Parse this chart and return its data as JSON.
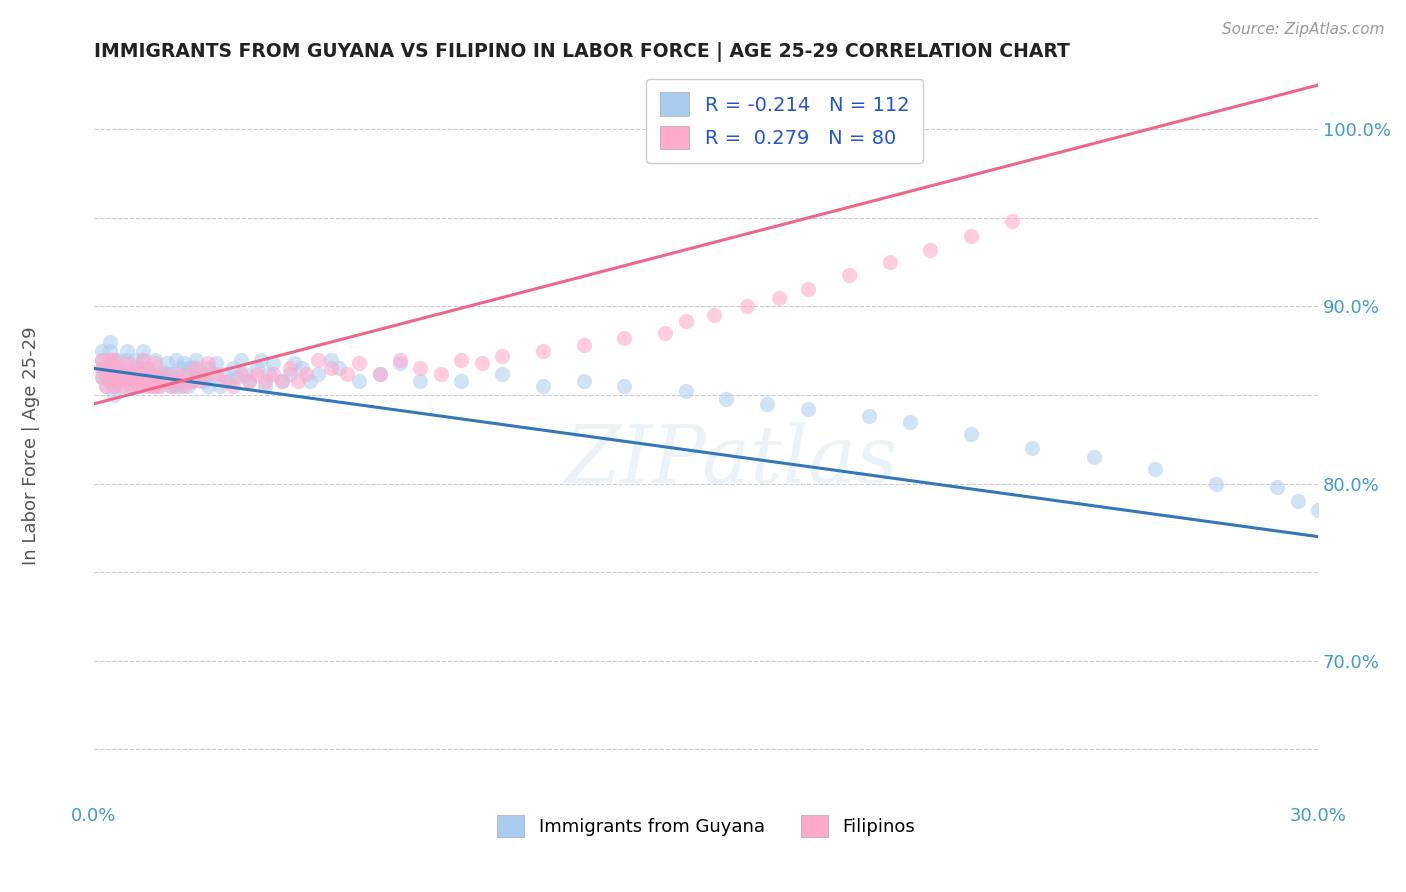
{
  "title": "IMMIGRANTS FROM GUYANA VS FILIPINO IN LABOR FORCE | AGE 25-29 CORRELATION CHART",
  "source": "Source: ZipAtlas.com",
  "ylabel": "In Labor Force | Age 25-29",
  "xlim": [
    0.0,
    0.3
  ],
  "ylim": [
    0.62,
    1.03
  ],
  "legend_label1": "Immigrants from Guyana",
  "legend_label2": "Filipinos",
  "r1": -0.214,
  "n1": 112,
  "r2": 0.279,
  "n2": 80,
  "color_blue": "#aaccee",
  "color_pink": "#ffaacc",
  "color_blue_line": "#3377bb",
  "color_pink_line": "#ee6688",
  "background": "#ffffff",
  "grid_color": "#bbbbcc",
  "title_color": "#222222",
  "axis_label_color": "#4499cc",
  "watermark": "ZIPatlas",
  "blue_line_x0": 0.0,
  "blue_line_y0": 0.865,
  "blue_line_x1": 0.3,
  "blue_line_y1": 0.77,
  "pink_line_x0": 0.0,
  "pink_line_y0": 0.845,
  "pink_line_x1": 0.3,
  "pink_line_y1": 1.025,
  "blue_x": [
    0.002,
    0.002,
    0.002,
    0.002,
    0.003,
    0.003,
    0.003,
    0.004,
    0.004,
    0.004,
    0.005,
    0.005,
    0.005,
    0.005,
    0.005,
    0.006,
    0.006,
    0.006,
    0.007,
    0.007,
    0.008,
    0.008,
    0.008,
    0.008,
    0.009,
    0.009,
    0.01,
    0.01,
    0.01,
    0.011,
    0.011,
    0.012,
    0.012,
    0.012,
    0.013,
    0.013,
    0.014,
    0.014,
    0.015,
    0.015,
    0.015,
    0.016,
    0.016,
    0.017,
    0.017,
    0.018,
    0.018,
    0.019,
    0.019,
    0.02,
    0.02,
    0.02,
    0.021,
    0.021,
    0.022,
    0.022,
    0.023,
    0.023,
    0.024,
    0.024,
    0.025,
    0.025,
    0.026,
    0.027,
    0.028,
    0.028,
    0.029,
    0.03,
    0.031,
    0.032,
    0.033,
    0.034,
    0.035,
    0.036,
    0.037,
    0.038,
    0.04,
    0.041,
    0.042,
    0.043,
    0.044,
    0.046,
    0.048,
    0.049,
    0.051,
    0.053,
    0.055,
    0.058,
    0.06,
    0.065,
    0.07,
    0.075,
    0.08,
    0.09,
    0.1,
    0.11,
    0.12,
    0.13,
    0.145,
    0.155,
    0.165,
    0.175,
    0.19,
    0.2,
    0.215,
    0.23,
    0.245,
    0.26,
    0.275,
    0.29,
    0.295,
    0.3
  ],
  "blue_y": [
    0.86,
    0.865,
    0.87,
    0.875,
    0.855,
    0.86,
    0.865,
    0.87,
    0.875,
    0.88,
    0.85,
    0.855,
    0.86,
    0.865,
    0.87,
    0.86,
    0.865,
    0.87,
    0.855,
    0.86,
    0.86,
    0.865,
    0.87,
    0.875,
    0.855,
    0.86,
    0.86,
    0.865,
    0.87,
    0.855,
    0.86,
    0.865,
    0.87,
    0.875,
    0.86,
    0.865,
    0.855,
    0.86,
    0.855,
    0.86,
    0.87,
    0.855,
    0.862,
    0.858,
    0.863,
    0.868,
    0.862,
    0.855,
    0.862,
    0.855,
    0.86,
    0.87,
    0.855,
    0.865,
    0.858,
    0.868,
    0.855,
    0.865,
    0.858,
    0.866,
    0.86,
    0.87,
    0.862,
    0.858,
    0.865,
    0.855,
    0.862,
    0.868,
    0.855,
    0.862,
    0.858,
    0.865,
    0.86,
    0.87,
    0.862,
    0.858,
    0.865,
    0.87,
    0.855,
    0.862,
    0.868,
    0.858,
    0.862,
    0.868,
    0.865,
    0.858,
    0.862,
    0.87,
    0.865,
    0.858,
    0.862,
    0.868,
    0.858,
    0.858,
    0.862,
    0.855,
    0.858,
    0.855,
    0.852,
    0.848,
    0.845,
    0.842,
    0.838,
    0.835,
    0.828,
    0.82,
    0.815,
    0.808,
    0.8,
    0.798,
    0.79,
    0.785
  ],
  "pink_x": [
    0.002,
    0.002,
    0.002,
    0.003,
    0.003,
    0.004,
    0.004,
    0.005,
    0.005,
    0.005,
    0.006,
    0.006,
    0.007,
    0.007,
    0.008,
    0.008,
    0.009,
    0.009,
    0.01,
    0.01,
    0.011,
    0.011,
    0.012,
    0.012,
    0.013,
    0.013,
    0.014,
    0.014,
    0.015,
    0.015,
    0.016,
    0.017,
    0.018,
    0.019,
    0.02,
    0.021,
    0.022,
    0.023,
    0.024,
    0.025,
    0.026,
    0.027,
    0.028,
    0.03,
    0.032,
    0.034,
    0.036,
    0.038,
    0.04,
    0.042,
    0.044,
    0.046,
    0.048,
    0.05,
    0.052,
    0.055,
    0.058,
    0.062,
    0.065,
    0.07,
    0.075,
    0.08,
    0.085,
    0.09,
    0.095,
    0.1,
    0.11,
    0.12,
    0.13,
    0.14,
    0.145,
    0.152,
    0.16,
    0.168,
    0.175,
    0.185,
    0.195,
    0.205,
    0.215,
    0.225
  ],
  "pink_y": [
    0.86,
    0.865,
    0.87,
    0.855,
    0.865,
    0.858,
    0.87,
    0.855,
    0.862,
    0.87,
    0.858,
    0.866,
    0.855,
    0.862,
    0.858,
    0.868,
    0.855,
    0.862,
    0.858,
    0.866,
    0.855,
    0.862,
    0.858,
    0.87,
    0.855,
    0.865,
    0.858,
    0.862,
    0.855,
    0.868,
    0.855,
    0.862,
    0.858,
    0.855,
    0.862,
    0.858,
    0.855,
    0.862,
    0.858,
    0.865,
    0.858,
    0.862,
    0.868,
    0.862,
    0.858,
    0.855,
    0.862,
    0.858,
    0.862,
    0.858,
    0.862,
    0.858,
    0.865,
    0.858,
    0.862,
    0.87,
    0.865,
    0.862,
    0.868,
    0.862,
    0.87,
    0.865,
    0.862,
    0.87,
    0.868,
    0.872,
    0.875,
    0.878,
    0.882,
    0.885,
    0.892,
    0.895,
    0.9,
    0.905,
    0.91,
    0.918,
    0.925,
    0.932,
    0.94,
    0.948
  ]
}
